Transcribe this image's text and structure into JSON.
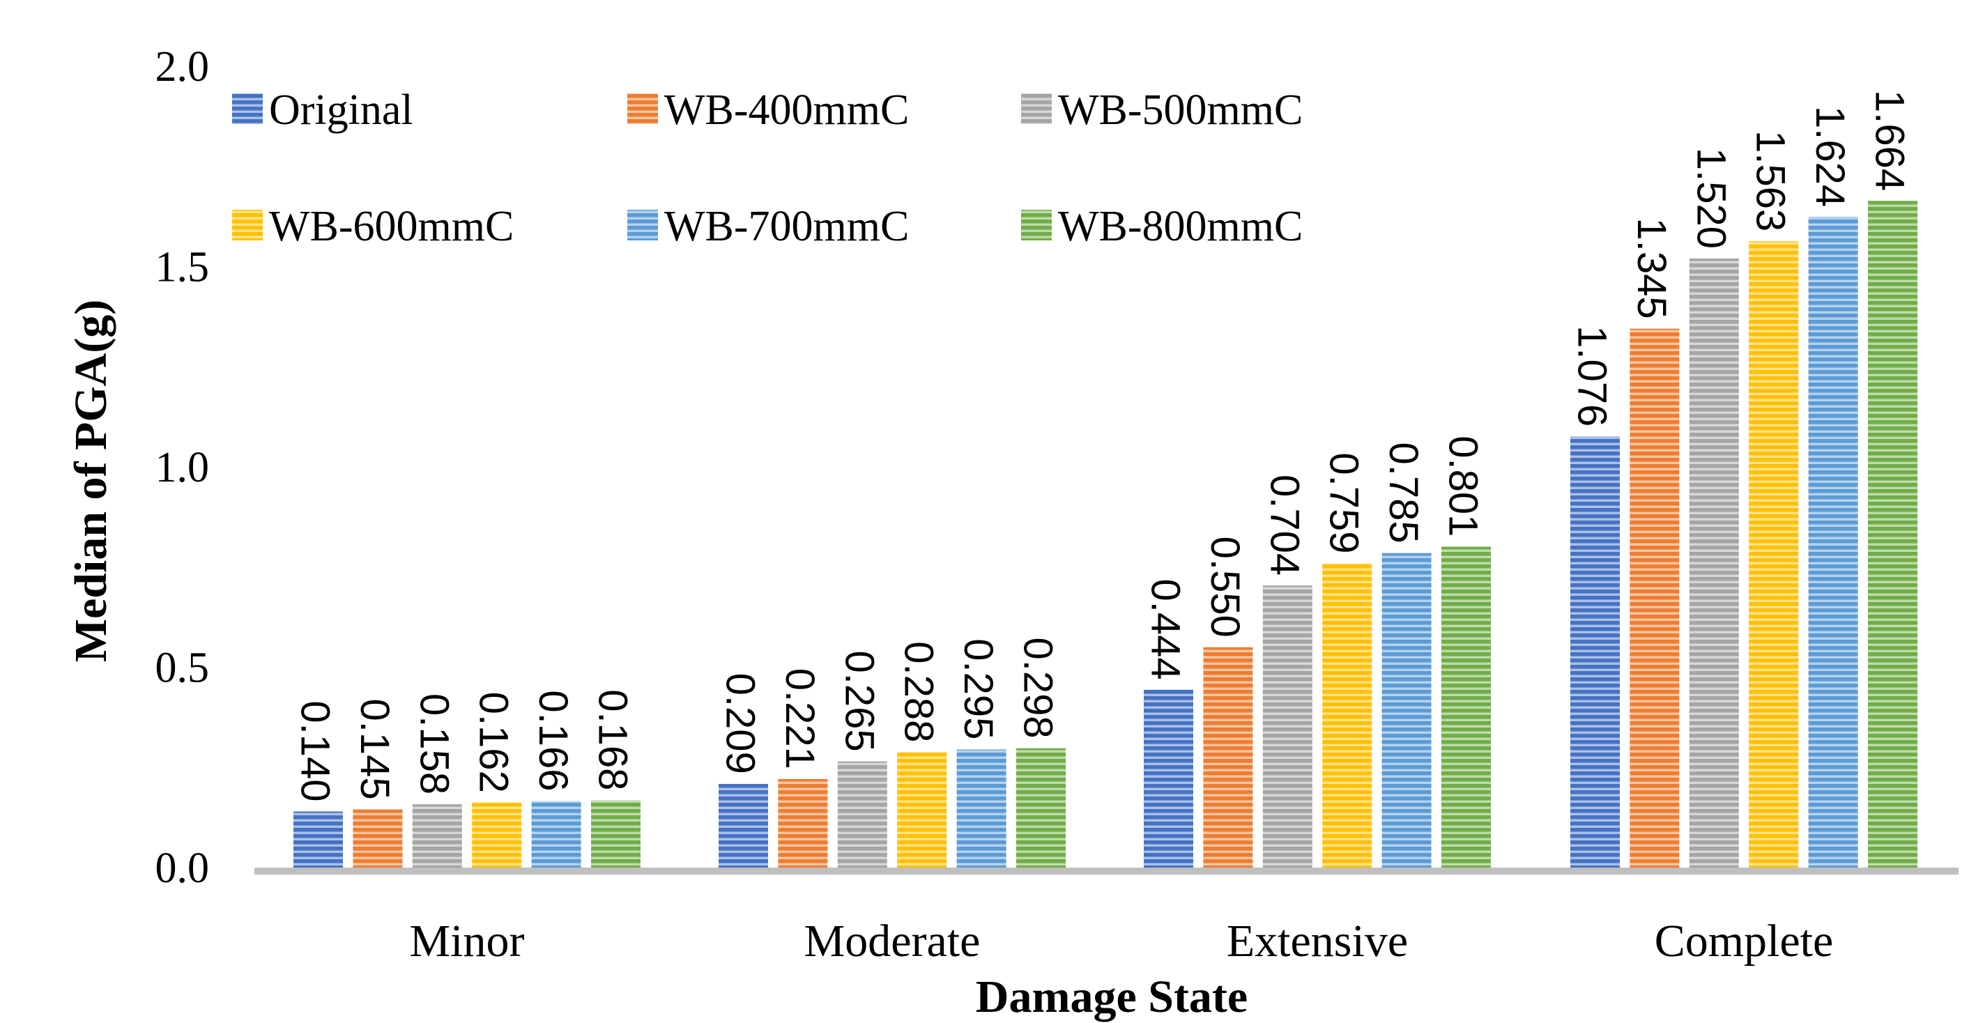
{
  "chart_data": {
    "type": "bar",
    "title": "",
    "xlabel": "Damage State",
    "ylabel": "Median of PGA(g)",
    "ylim": [
      0,
      2
    ],
    "yticks": [
      "0.0",
      "0.5",
      "1.0",
      "1.5",
      "2.0"
    ],
    "ytick_values": [
      0,
      0.5,
      1.0,
      1.5,
      2.0
    ],
    "legend_position": "top-left",
    "categories": [
      "Minor",
      "Moderate",
      "Extensive",
      "Complete"
    ],
    "series": [
      {
        "name": "Original",
        "color": "#4472C4",
        "values": [
          0.14,
          0.209,
          0.444,
          1.076
        ],
        "labels": [
          "0.140",
          "0.209",
          "0.444",
          "1.076"
        ]
      },
      {
        "name": "WB-400mmC",
        "color": "#ED7D31",
        "values": [
          0.145,
          0.221,
          0.55,
          1.345
        ],
        "labels": [
          "0.145",
          "0.221",
          "0.550",
          "1.345"
        ]
      },
      {
        "name": "WB-500mmC",
        "color": "#A5A5A5",
        "values": [
          0.158,
          0.265,
          0.704,
          1.52
        ],
        "labels": [
          "0.158",
          "0.265",
          "0.704",
          "1.520"
        ]
      },
      {
        "name": "WB-600mmC",
        "color": "#FFC000",
        "values": [
          0.162,
          0.288,
          0.759,
          1.563
        ],
        "labels": [
          "0.162",
          "0.288",
          "0.759",
          "1.563"
        ]
      },
      {
        "name": "WB-700mmC",
        "color": "#5B9BD5",
        "values": [
          0.166,
          0.295,
          0.785,
          1.624
        ],
        "labels": [
          "0.166",
          "0.295",
          "0.785",
          "1.624"
        ]
      },
      {
        "name": "WB-800mmC",
        "color": "#70AD47",
        "values": [
          0.168,
          0.298,
          0.801,
          1.664
        ],
        "labels": [
          "0.168",
          "0.298",
          "0.801",
          "1.664"
        ]
      }
    ]
  }
}
